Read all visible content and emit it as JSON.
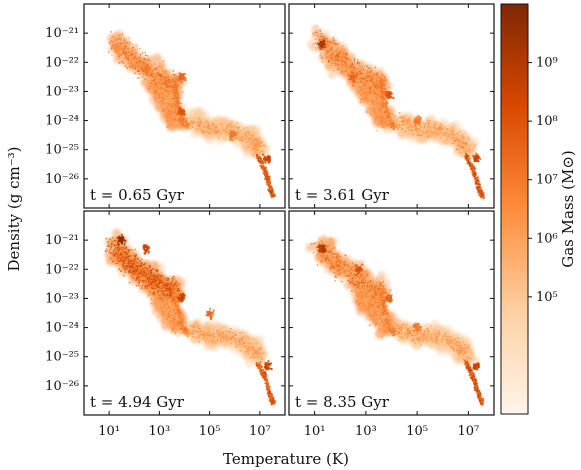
{
  "chart_data": {
    "type": "heatmap",
    "title": "",
    "xlabel": "Temperature (K)",
    "ylabel": "Density (g cm⁻³)",
    "x_scale": "log",
    "y_scale": "log",
    "xlim": [
      1,
      100000000.0
    ],
    "ylim": [
      1e-27,
      1e-20
    ],
    "x_ticks": [
      {
        "value": 10,
        "label": "10¹"
      },
      {
        "value": 1000,
        "label": "10³"
      },
      {
        "value": 100000,
        "label": "10⁵"
      },
      {
        "value": 10000000,
        "label": "10⁷"
      }
    ],
    "y_ticks": [
      {
        "value": 1e-21,
        "label": "10⁻²¹"
      },
      {
        "value": 1e-22,
        "label": "10⁻²²"
      },
      {
        "value": 1e-23,
        "label": "10⁻²³"
      },
      {
        "value": 1e-24,
        "label": "10⁻²⁴"
      },
      {
        "value": 1e-25,
        "label": "10⁻²⁵"
      },
      {
        "value": 1e-26,
        "label": "10⁻²⁶"
      }
    ],
    "colorbar": {
      "label": "Gas Mass (M⊙)",
      "scale": "log",
      "range": [
        1000,
        10000000000
      ],
      "ticks": [
        {
          "value": 1000000000,
          "label": "10⁹"
        },
        {
          "value": 100000000,
          "label": "10⁸"
        },
        {
          "value": 10000000,
          "label": "10⁷"
        },
        {
          "value": 1000000,
          "label": "10⁶"
        },
        {
          "value": 100000,
          "label": "10⁵"
        }
      ],
      "colors": [
        "#fff5eb",
        "#fdd0a2",
        "#fd8d3c",
        "#d94801",
        "#7f2704"
      ]
    },
    "panels": [
      {
        "time_label": "t = 0.65 Gyr",
        "peak_mass": 300000000.0,
        "features": [
          {
            "x": 20,
            "y": 3e-22,
            "mass": 3000000.0
          },
          {
            "x": 300,
            "y": 6e-23,
            "mass": 10000000.0
          },
          {
            "x": 8000,
            "y": 3e-23,
            "mass": 30000000.0
          },
          {
            "x": 8000,
            "y": 2e-24,
            "mass": 100000000.0
          },
          {
            "x": 800000,
            "y": 3e-25,
            "mass": 10000000.0
          },
          {
            "x": 20000000,
            "y": 5e-26,
            "mass": 300000000.0
          }
        ]
      },
      {
        "time_label": "t = 3.61 Gyr",
        "peak_mass": 1000000000.0,
        "features": [
          {
            "x": 20,
            "y": 4e-22,
            "mass": 1000000000.0
          },
          {
            "x": 300,
            "y": 3e-23,
            "mass": 30000000.0
          },
          {
            "x": 8000,
            "y": 8e-24,
            "mass": 100000000.0
          },
          {
            "x": 100000,
            "y": 1e-24,
            "mass": 10000000.0
          },
          {
            "x": 20000000,
            "y": 5e-26,
            "mass": 300000000.0
          }
        ]
      },
      {
        "time_label": "t = 4.94 Gyr",
        "peak_mass": 5000000000.0,
        "features": [
          {
            "x": 30,
            "y": 1e-21,
            "mass": 5000000000.0
          },
          {
            "x": 300,
            "y": 5e-22,
            "mass": 300000000.0
          },
          {
            "x": 8000,
            "y": 1e-23,
            "mass": 300000000.0
          },
          {
            "x": 100000,
            "y": 3e-24,
            "mass": 30000000.0
          },
          {
            "x": 20000000,
            "y": 5e-26,
            "mass": 300000000.0
          }
        ]
      },
      {
        "time_label": "t = 8.35 Gyr",
        "peak_mass": 1000000000.0,
        "features": [
          {
            "x": 20,
            "y": 5e-22,
            "mass": 1000000000.0
          },
          {
            "x": 500,
            "y": 1e-22,
            "mass": 100000000.0
          },
          {
            "x": 8000,
            "y": 1e-23,
            "mass": 30000000.0
          },
          {
            "x": 100000,
            "y": 1e-24,
            "mass": 10000000.0
          },
          {
            "x": 20000000,
            "y": 5e-26,
            "mass": 300000000.0
          }
        ]
      }
    ]
  }
}
